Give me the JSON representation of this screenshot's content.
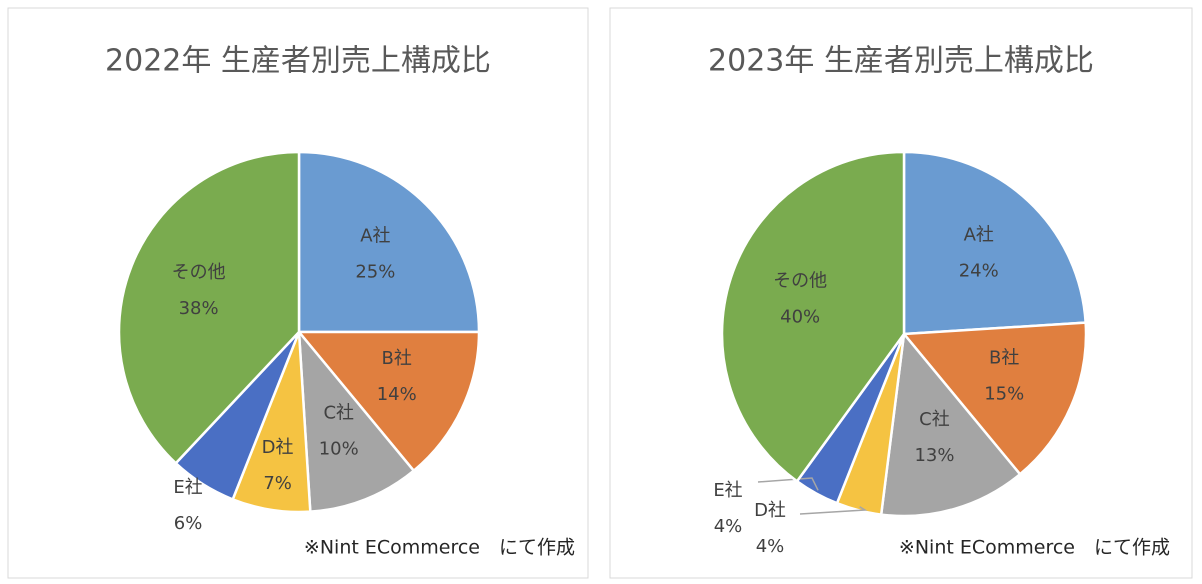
{
  "chart_data": [
    {
      "type": "pie",
      "title": "2022年 生産者別売上構成比",
      "categories": [
        "A社",
        "B社",
        "C社",
        "D社",
        "E社",
        "その他"
      ],
      "values": [
        25,
        14,
        10,
        7,
        6,
        38
      ],
      "value_labels": [
        "25%",
        "14%",
        "10%",
        "7%",
        "6%",
        "38%"
      ],
      "colors": [
        "#6a9bd1",
        "#e07f3f",
        "#a5a5a5",
        "#f5c342",
        "#4a6fc4",
        "#7aab4f"
      ],
      "annotation": "※Nint ECommerce　にて作成"
    },
    {
      "type": "pie",
      "title": "2023年 生産者別売上構成比",
      "categories": [
        "A社",
        "B社",
        "C社",
        "D社",
        "E社",
        "その他"
      ],
      "values": [
        24,
        15,
        13,
        4,
        4,
        40
      ],
      "value_labels": [
        "24%",
        "15%",
        "13%",
        "4%",
        "4%",
        "40%"
      ],
      "colors": [
        "#6a9bd1",
        "#e07f3f",
        "#a5a5a5",
        "#f5c342",
        "#4a6fc4",
        "#7aab4f"
      ],
      "annotation": "※Nint ECommerce　にて作成"
    }
  ]
}
